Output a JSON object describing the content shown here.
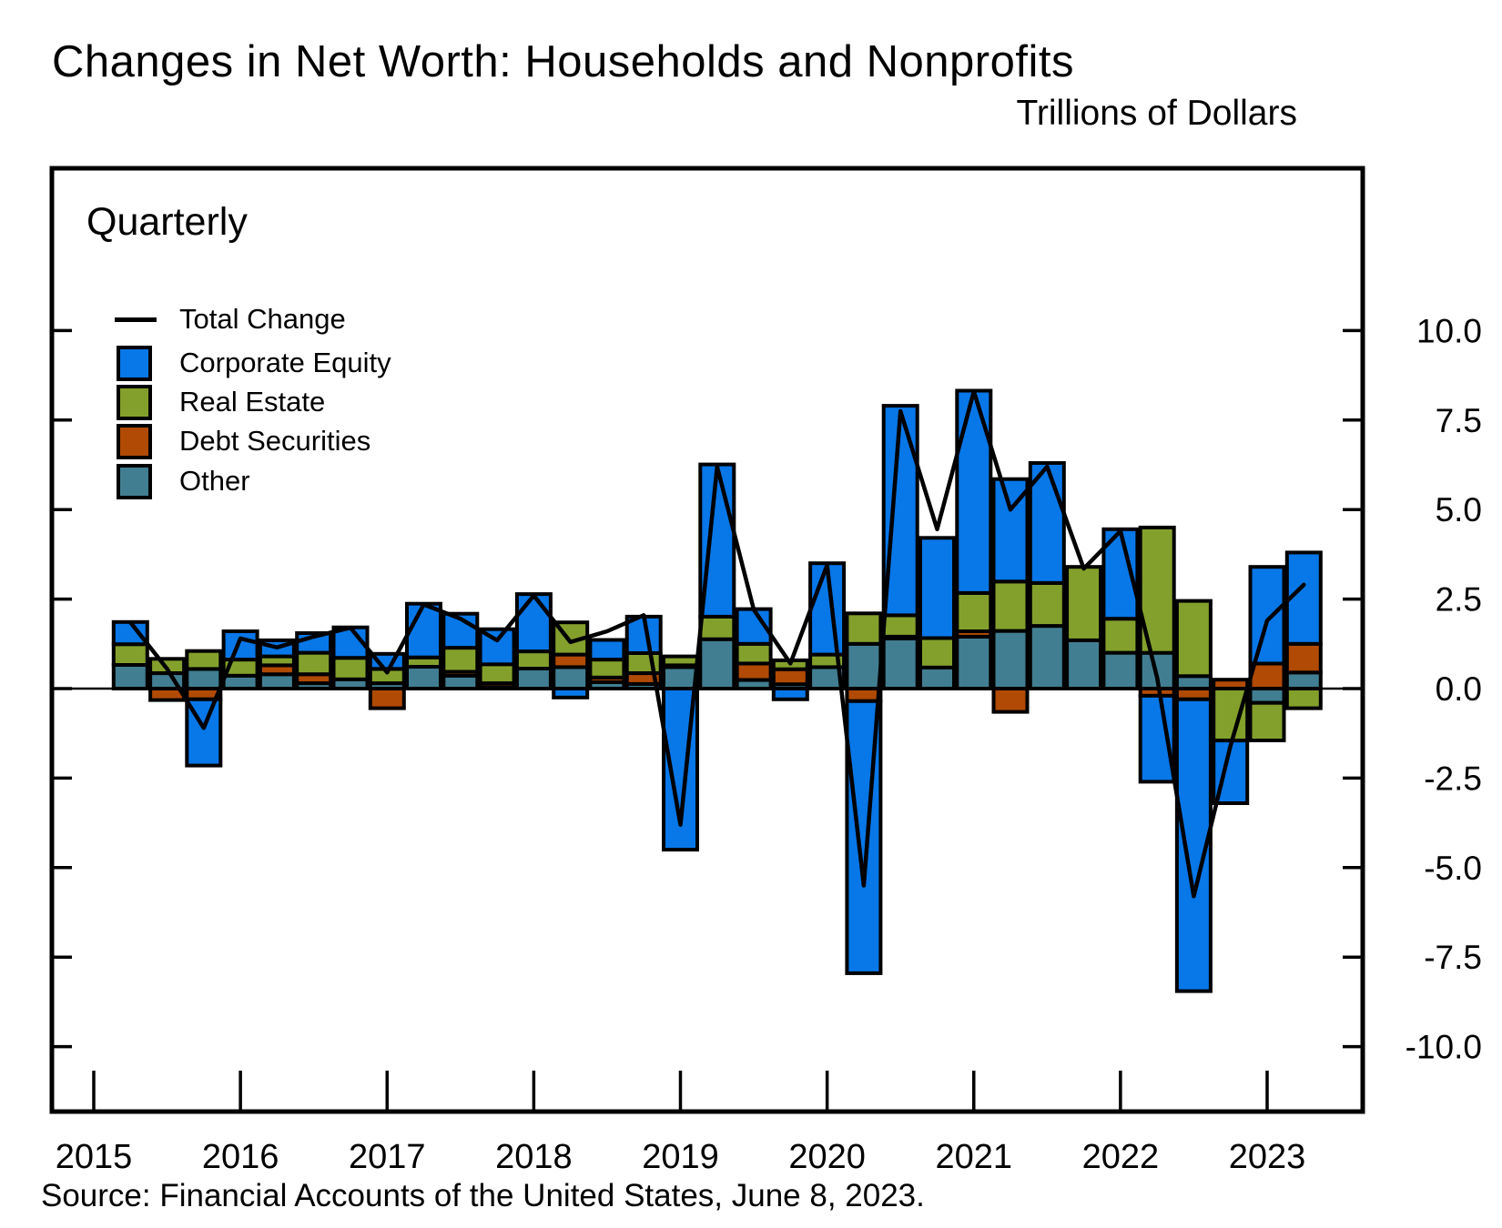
{
  "chart_data": {
    "type": "bar",
    "stacked": true,
    "title": "Changes in Net Worth: Households and Nonprofits",
    "units_label": "Trillions of Dollars",
    "panel_label": "Quarterly",
    "source": "Source: Financial Accounts of the United States, June 8, 2023.",
    "grid": false,
    "legend_position": "upper-left-inside",
    "categories": [
      "2015 Q1",
      "2015 Q2",
      "2015 Q3",
      "2015 Q4",
      "2016 Q1",
      "2016 Q2",
      "2016 Q3",
      "2016 Q4",
      "2017 Q1",
      "2017 Q2",
      "2017 Q3",
      "2017 Q4",
      "2018 Q1",
      "2018 Q2",
      "2018 Q3",
      "2018 Q4",
      "2019 Q1",
      "2019 Q2",
      "2019 Q3",
      "2019 Q4",
      "2020 Q1",
      "2020 Q2",
      "2020 Q3",
      "2020 Q4",
      "2021 Q1",
      "2021 Q2",
      "2021 Q3",
      "2021 Q4",
      "2022 Q1",
      "2022 Q2",
      "2022 Q3",
      "2022 Q4",
      "2023 Q1"
    ],
    "series": [
      {
        "name": "Corporate Equity",
        "color": "#0877e8",
        "values": [
          0.62,
          0.0,
          -1.85,
          0.79,
          0.45,
          0.55,
          0.85,
          0.42,
          1.5,
          0.95,
          0.98,
          1.6,
          -0.25,
          0.55,
          1.02,
          -4.5,
          4.25,
          0.97,
          -0.3,
          2.55,
          -7.6,
          5.85,
          2.8,
          5.65,
          2.86,
          3.35,
          0.0,
          2.5,
          -2.4,
          -8.15,
          -1.75,
          2.7,
          2.55
        ]
      },
      {
        "name": "Real Estate",
        "color": "#84a02c",
        "values": [
          0.58,
          0.4,
          0.5,
          0.45,
          0.25,
          0.6,
          0.6,
          0.4,
          0.26,
          0.67,
          0.53,
          0.48,
          0.9,
          0.5,
          0.56,
          0.25,
          0.63,
          0.55,
          0.25,
          0.35,
          0.85,
          0.6,
          0.82,
          1.07,
          1.38,
          1.2,
          2.05,
          0.95,
          3.5,
          2.1,
          -1.45,
          -1.05,
          -0.55
        ]
      },
      {
        "name": "Debt Securities",
        "color": "#b04a04",
        "values": [
          0.0,
          -0.32,
          -0.3,
          0.0,
          0.25,
          0.25,
          0.0,
          -0.55,
          0.0,
          0.11,
          0.11,
          0.0,
          0.35,
          0.13,
          0.3,
          0.05,
          0.0,
          0.46,
          0.42,
          0.0,
          -0.35,
          0.05,
          0.0,
          0.15,
          -0.65,
          0.0,
          0.0,
          0.0,
          -0.2,
          -0.3,
          0.25,
          0.7,
          0.8
        ]
      },
      {
        "name": "Other",
        "color": "#417e92",
        "values": [
          0.66,
          0.43,
          0.55,
          0.36,
          0.4,
          0.15,
          0.26,
          0.15,
          0.61,
          0.36,
          0.04,
          0.56,
          0.6,
          0.18,
          0.13,
          0.6,
          1.38,
          0.24,
          0.12,
          0.6,
          1.25,
          1.4,
          0.59,
          1.45,
          1.61,
          1.75,
          1.35,
          1.0,
          1.0,
          0.35,
          0.0,
          -0.4,
          0.45
        ]
      }
    ],
    "stack_order_from_zero": [
      "Other",
      "Debt Securities",
      "Real Estate",
      "Corporate Equity"
    ],
    "line_series": {
      "name": "Total Change",
      "color": "#000000",
      "values": [
        1.85,
        0.55,
        -1.1,
        1.4,
        1.15,
        1.45,
        1.7,
        0.45,
        2.35,
        1.95,
        1.35,
        2.6,
        1.3,
        1.6,
        2.05,
        -3.8,
        6.2,
        2.2,
        0.7,
        3.45,
        -5.5,
        7.75,
        4.45,
        8.3,
        5.0,
        6.2,
        3.35,
        4.4,
        0.3,
        -5.8,
        -1.6,
        1.9,
        2.9
      ]
    },
    "legend": [
      {
        "label": "Total Change",
        "type": "line"
      },
      {
        "label": "Corporate Equity",
        "type": "box",
        "series": "Corporate Equity"
      },
      {
        "label": "Real Estate",
        "type": "box",
        "series": "Real Estate"
      },
      {
        "label": "Debt Securities",
        "type": "box",
        "series": "Debt Securities"
      },
      {
        "label": "Other",
        "type": "box",
        "series": "Other"
      }
    ],
    "x_tick_labels": [
      "2015",
      "2016",
      "2017",
      "2018",
      "2019",
      "2020",
      "2021",
      "2022",
      "2023"
    ],
    "y_ticks": [
      {
        "value": 10.0,
        "label": "10.0"
      },
      {
        "value": 7.5,
        "label": "7.5"
      },
      {
        "value": 5.0,
        "label": "5.0"
      },
      {
        "value": 2.5,
        "label": "2.5"
      },
      {
        "value": 0.0,
        "label": "0.0"
      },
      {
        "value": -2.5,
        "label": "-2.5"
      },
      {
        "value": -5.0,
        "label": "-5.0"
      },
      {
        "value": -7.5,
        "label": "-7.5"
      },
      {
        "value": -10.0,
        "label": "-10.0"
      }
    ],
    "ylim": [
      -11.6,
      14.5
    ]
  }
}
